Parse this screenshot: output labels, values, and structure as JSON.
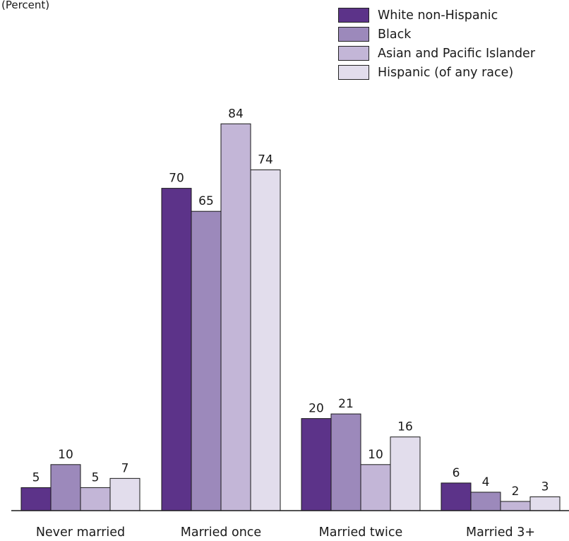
{
  "chart_data": {
    "type": "bar",
    "unit_label": "(Percent)",
    "categories": [
      "Never married",
      "Married once",
      "Married twice",
      "Married 3+"
    ],
    "series": [
      {
        "name": "White non-Hispanic",
        "color": "#5c3389",
        "values": [
          5,
          70,
          20,
          6
        ]
      },
      {
        "name": "Black",
        "color": "#9c89bb",
        "values": [
          10,
          65,
          21,
          4
        ]
      },
      {
        "name": "Asian and Pacific Islander",
        "color": "#c3b6d7",
        "values": [
          5,
          84,
          10,
          2
        ]
      },
      {
        "name": "Hispanic (of any race)",
        "color": "#e2ddec",
        "values": [
          7,
          74,
          16,
          3
        ]
      }
    ],
    "ylim": [
      0,
      100
    ],
    "grid": false,
    "legend_position": "top-right",
    "data_labels": true
  }
}
